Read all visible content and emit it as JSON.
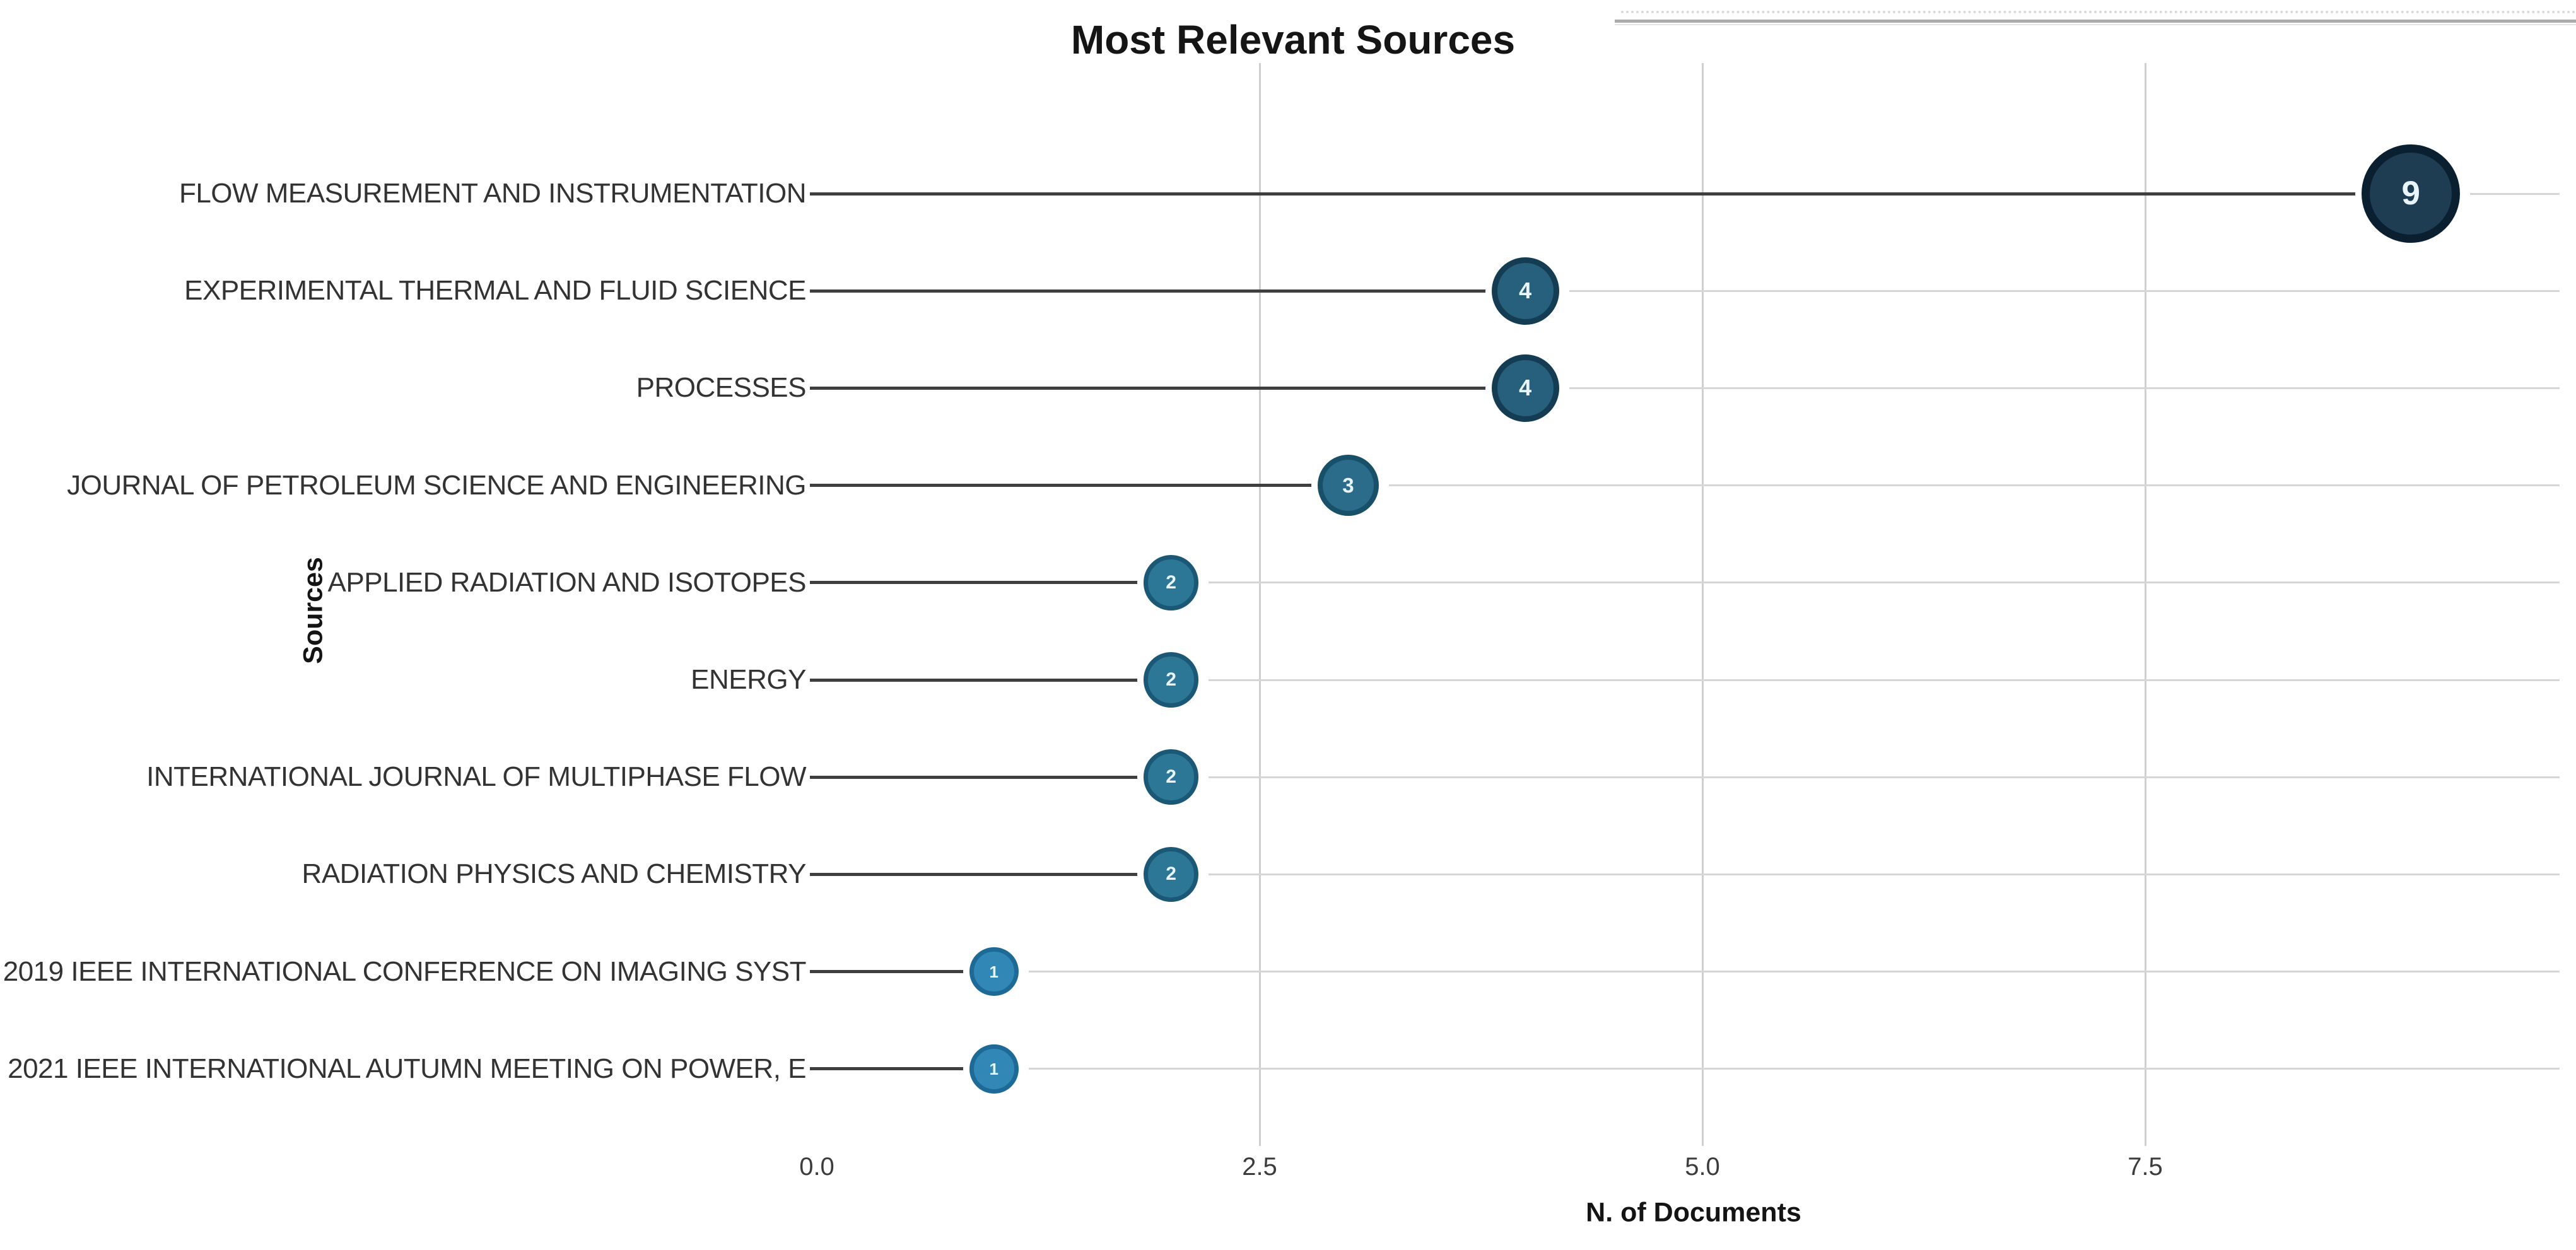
{
  "chart_data": {
    "type": "scatter",
    "variant": "horizontal-lollipop-bubble",
    "title": "Most Relevant Sources",
    "xlabel": "N. of Documents",
    "ylabel": "Sources",
    "xlim": [
      0,
      9.93
    ],
    "grid": "vertical-gridlines-at-2.5-5.0-7.5",
    "legend": "none",
    "x_ticks": [
      {
        "label": "0.0",
        "value": 0.0
      },
      {
        "label": "2.5",
        "value": 2.5
      },
      {
        "label": "5.0",
        "value": 5.0
      },
      {
        "label": "7.5",
        "value": 7.5
      }
    ],
    "categories": [
      "FLOW MEASUREMENT AND INSTRUMENTATION",
      "EXPERIMENTAL THERMAL AND FLUID SCIENCE",
      "PROCESSES",
      "JOURNAL OF PETROLEUM SCIENCE AND ENGINEERING",
      "APPLIED RADIATION AND ISOTOPES",
      "ENERGY",
      "INTERNATIONAL JOURNAL OF MULTIPHASE FLOW",
      "RADIATION PHYSICS AND CHEMISTRY",
      "2019 IEEE INTERNATIONAL CONFERENCE ON IMAGING SYST",
      "2021 IEEE INTERNATIONAL AUTUMN MEETING ON POWER, E"
    ],
    "values": [
      9,
      4,
      4,
      3,
      2,
      2,
      2,
      2,
      1,
      1
    ],
    "sources": [
      {
        "label": "FLOW MEASUREMENT AND INSTRUMENTATION",
        "value": 9,
        "value_label": "9",
        "bubble_fill": "#1e3c52",
        "bubble_ring": "#0a1f30"
      },
      {
        "label": "EXPERIMENTAL THERMAL AND FLUID SCIENCE",
        "value": 4,
        "value_label": "4",
        "bubble_fill": "#26607d",
        "bubble_ring": "#143d54"
      },
      {
        "label": "PROCESSES",
        "value": 4,
        "value_label": "4",
        "bubble_fill": "#26607d",
        "bubble_ring": "#143d54"
      },
      {
        "label": "JOURNAL OF PETROLEUM SCIENCE AND ENGINEERING",
        "value": 3,
        "value_label": "3",
        "bubble_fill": "#2a6c8a",
        "bubble_ring": "#175068"
      },
      {
        "label": "APPLIED RADIATION AND ISOTOPES",
        "value": 2,
        "value_label": "2",
        "bubble_fill": "#2d7796",
        "bubble_ring": "#1a5876"
      },
      {
        "label": "ENERGY",
        "value": 2,
        "value_label": "2",
        "bubble_fill": "#2d7796",
        "bubble_ring": "#1a5876"
      },
      {
        "label": "INTERNATIONAL JOURNAL OF MULTIPHASE FLOW",
        "value": 2,
        "value_label": "2",
        "bubble_fill": "#2d7796",
        "bubble_ring": "#1a5876"
      },
      {
        "label": "RADIATION PHYSICS AND CHEMISTRY",
        "value": 2,
        "value_label": "2",
        "bubble_fill": "#2d7796",
        "bubble_ring": "#1a5876"
      },
      {
        "label": "2019 IEEE INTERNATIONAL CONFERENCE ON IMAGING SYST",
        "value": 1,
        "value_label": "1",
        "bubble_fill": "#3187b6",
        "bubble_ring": "#1e6a97"
      },
      {
        "label": "2021 IEEE INTERNATIONAL AUTUMN MEETING ON POWER, E",
        "value": 1,
        "value_label": "1",
        "bubble_fill": "#3187b6",
        "bubble_ring": "#1e6a97"
      }
    ],
    "colors": {
      "stem_line": "#3f3f3f",
      "row_line": "#d6d6d6",
      "gridline": "#cfcfcf",
      "bubble_text": "#e9f5fd",
      "label_text": "#333333",
      "tick_text": "#3c3c3c",
      "title_text": "#151515",
      "top_partial_border": "#ababab"
    }
  }
}
